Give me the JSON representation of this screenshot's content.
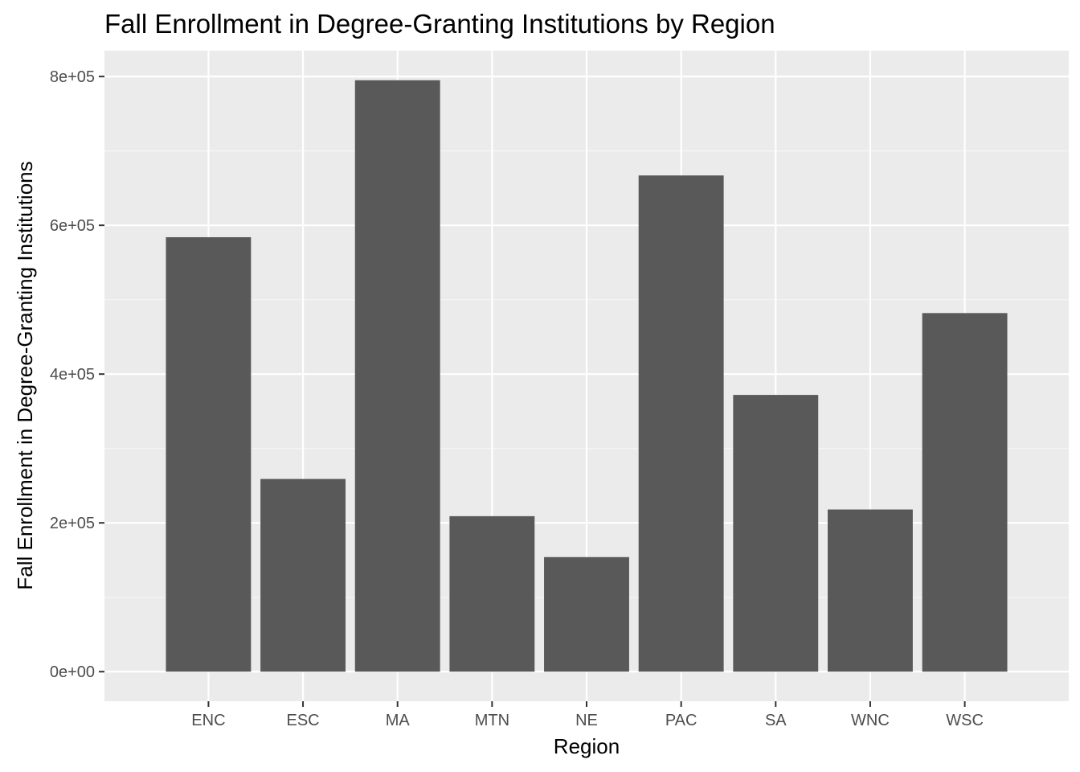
{
  "chart_data": {
    "type": "bar",
    "title": "Fall Enrollment in Degree-Granting Institutions by Region",
    "xlabel": "Region",
    "ylabel": "Fall Enrollment in Degree-Granting Institutions",
    "categories": [
      "ENC",
      "ESC",
      "MA",
      "MTN",
      "NE",
      "PAC",
      "SA",
      "WNC",
      "WSC"
    ],
    "values": [
      584000,
      259000,
      795000,
      209000,
      154000,
      667000,
      372000,
      218000,
      482000
    ],
    "ylim": [
      -39750,
      834750
    ],
    "y_ticks": [
      0,
      200000,
      400000,
      600000,
      800000
    ],
    "y_tick_labels": [
      "0e+00",
      "2e+05",
      "4e+05",
      "6e+05",
      "8e+05"
    ],
    "grid": true,
    "legend": "none",
    "colors": {
      "bar": "#595959",
      "panel_background": "#ebebeb",
      "grid_major": "#ffffff",
      "grid_minor": "#f5f5f5",
      "tick_text": "#4d4d4d",
      "text": "#000000"
    }
  }
}
